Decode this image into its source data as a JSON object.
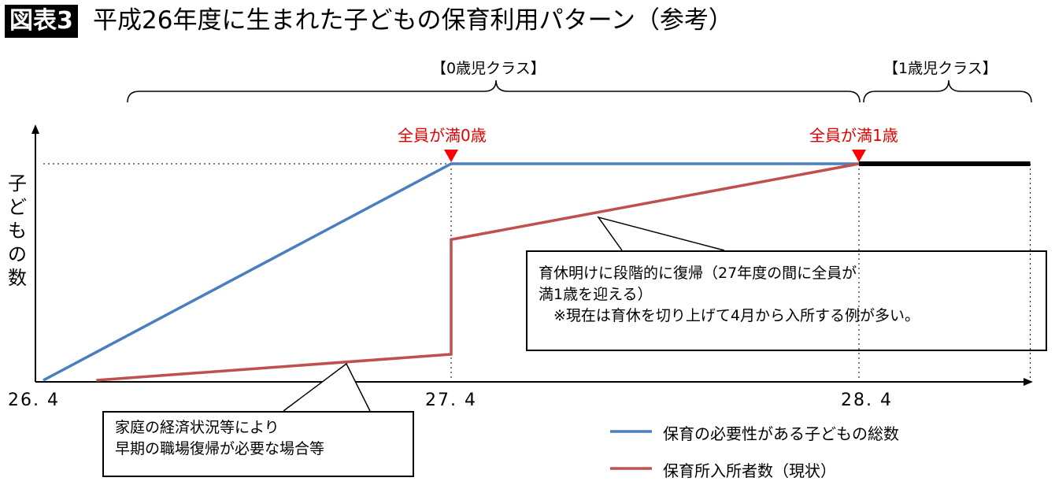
{
  "header": {
    "badge": "図表3",
    "title": "平成26年度に生まれた子どもの保育利用パターン（参考）"
  },
  "colors": {
    "blue": "#4a7ebf",
    "red": "#c0504d",
    "marker": "#ff0000",
    "black": "#000000"
  },
  "chart_data": {
    "type": "line",
    "title": "平成26年度に生まれた子どもの保育利用パターン（参考）",
    "ylabel": "子どもの数",
    "xlabel": "",
    "x_ticks": [
      "26. 4",
      "27. 4",
      "28. 4"
    ],
    "xlim": [
      26.3,
      28.75
    ],
    "ylim": [
      0,
      1
    ],
    "series": [
      {
        "name": "保育の必要性がある子どもの総数",
        "x": [
          26.33,
          27.33,
          28.33
        ],
        "y": [
          0,
          1,
          1
        ]
      },
      {
        "name": "保育所入所者数（現状）",
        "x": [
          26.46,
          27.33,
          27.33,
          28.33
        ],
        "y": [
          0,
          0.12,
          0.65,
          1
        ]
      },
      {
        "name": "1歳児クラス",
        "x": [
          28.33,
          28.75
        ],
        "y": [
          1,
          1
        ]
      }
    ],
    "annotations": {
      "class0": "【0歳児クラス】",
      "class1": "【1歳児クラス】",
      "marker0": "全員が満0歳",
      "marker1": "全員が満1歳",
      "callout1": [
        "家庭の経済状況等により",
        "早期の職場復帰が必要な場合等"
      ],
      "callout2": [
        "育休明けに段階的に復帰（27年度の間に全員が",
        "満1歳を迎える）",
        "　※現在は育休を切り上げて4月から入所する例が多い。"
      ]
    },
    "legend": {
      "placement": "bottom-right"
    }
  }
}
